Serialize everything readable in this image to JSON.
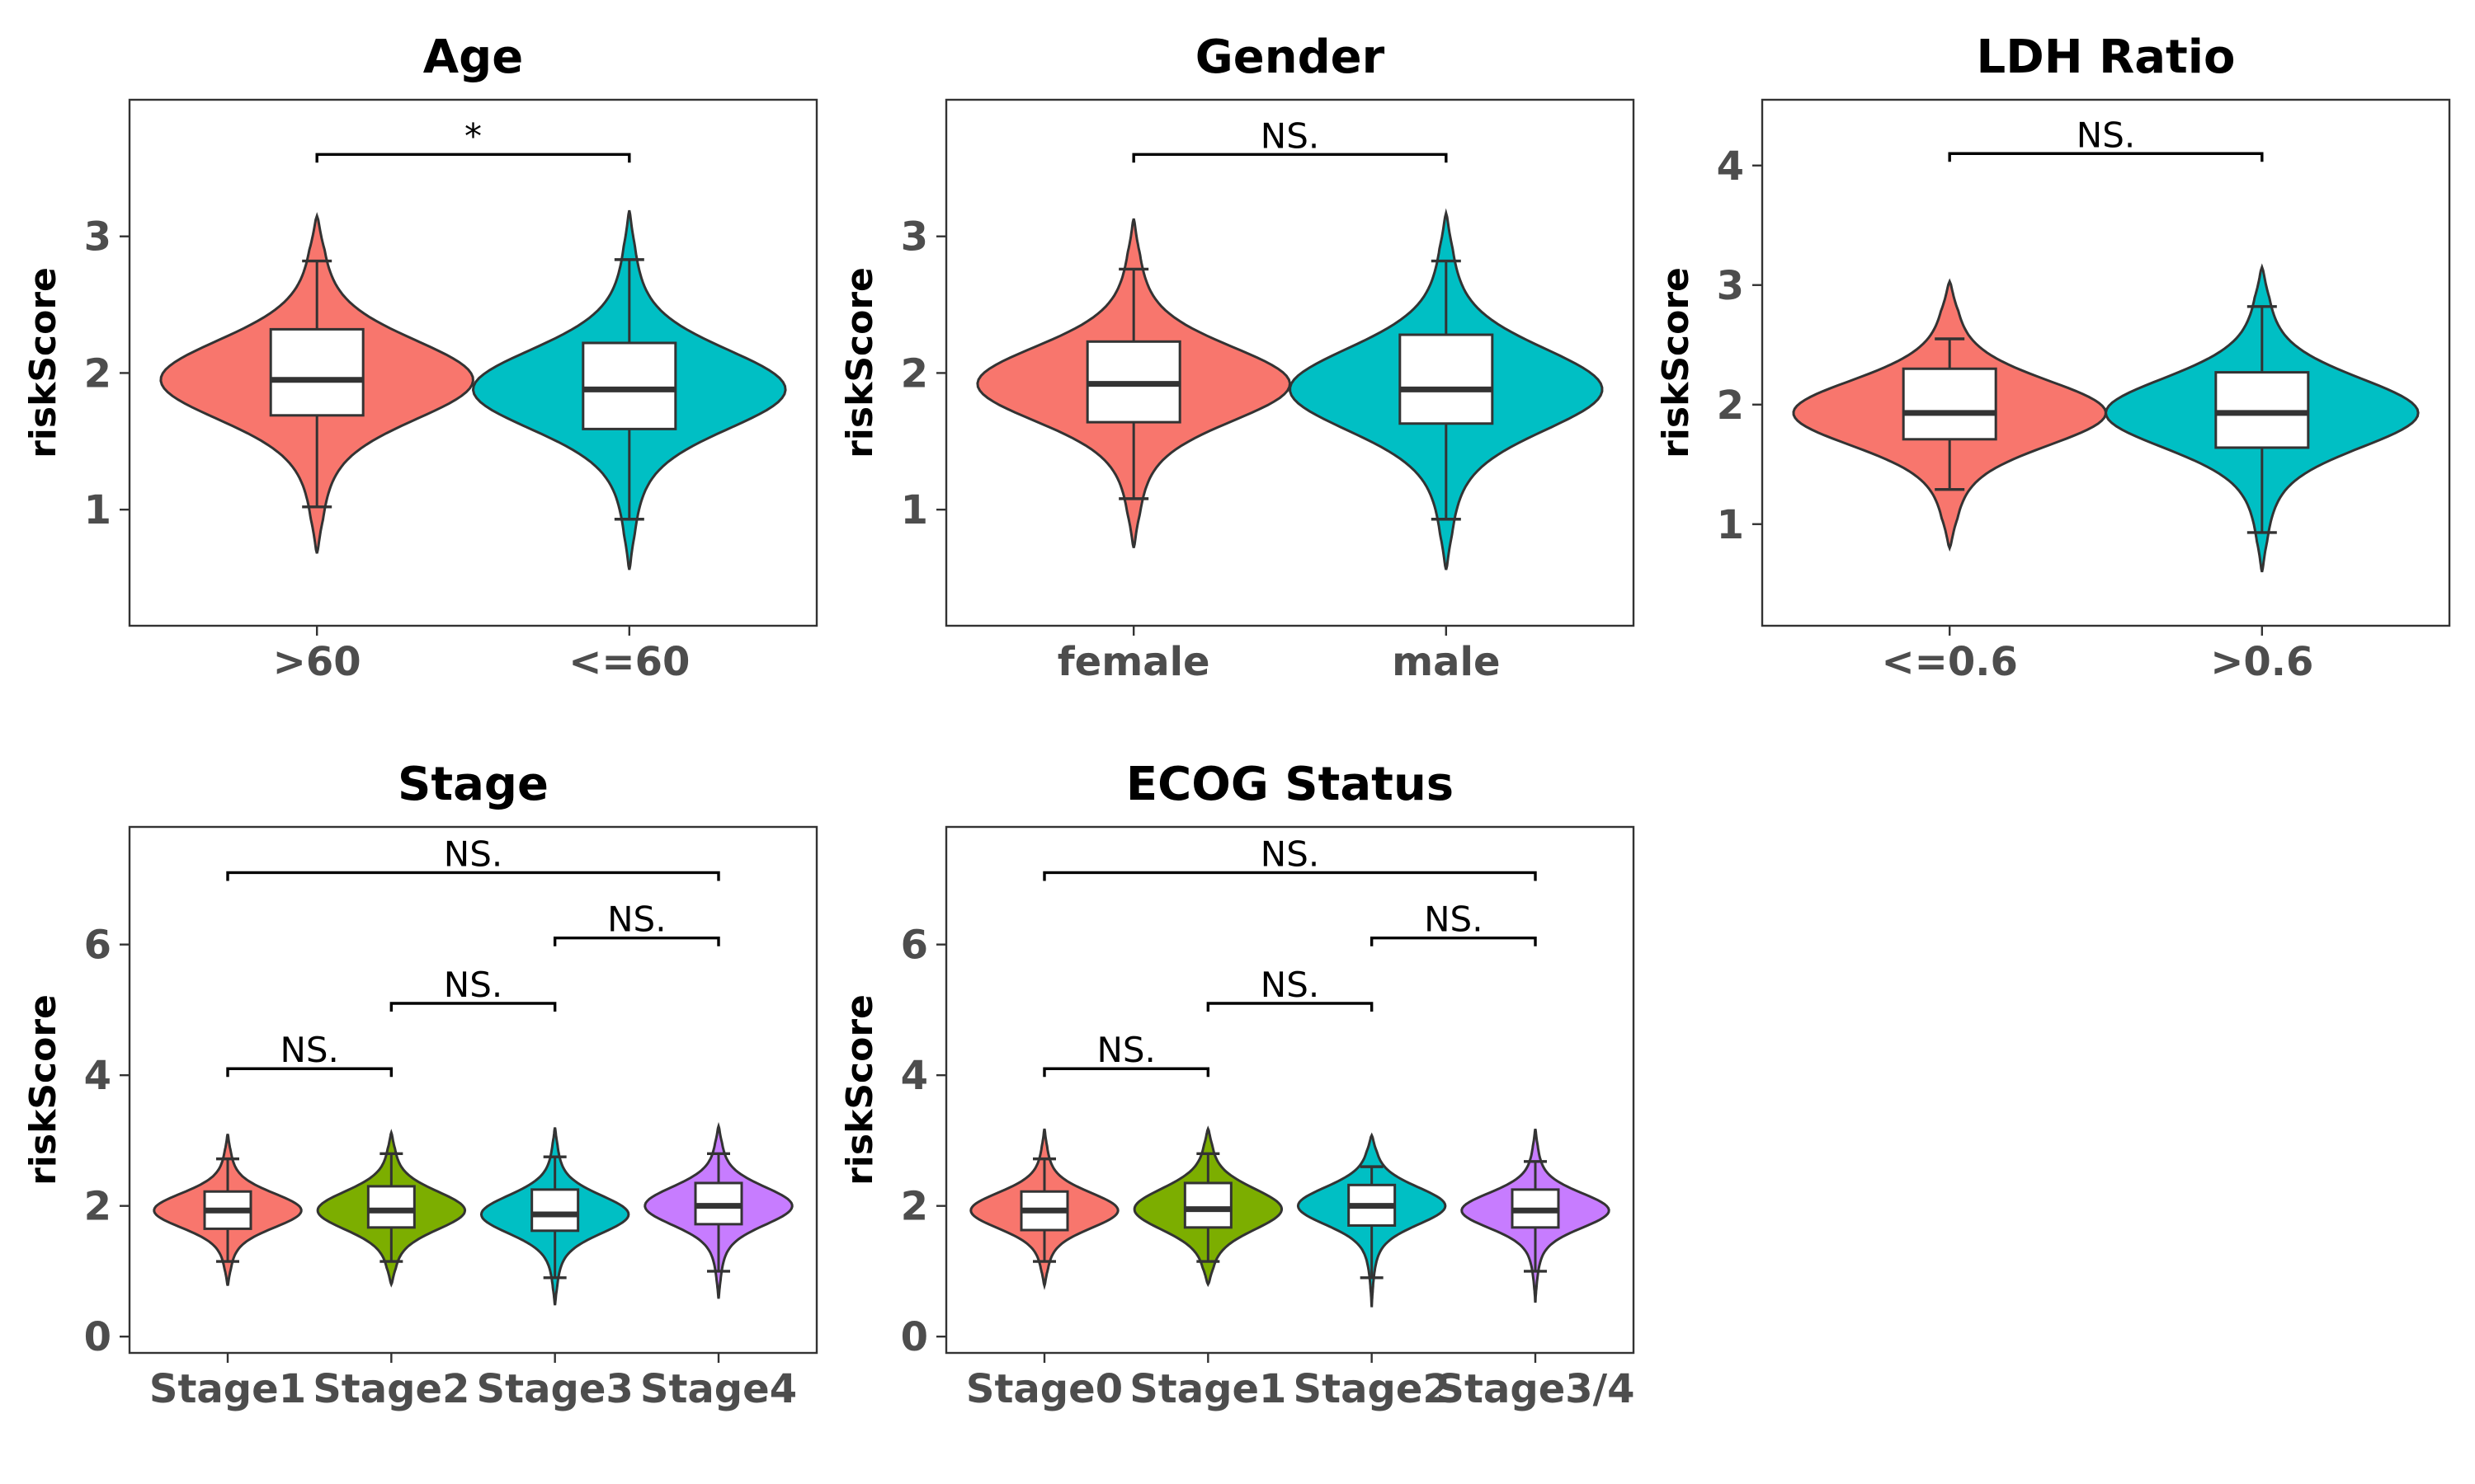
{
  "chart_data": [
    {
      "type": "violin",
      "title": "Age",
      "ylabel": "riskScore",
      "xlabel": "",
      "ylim": [
        0.15,
        4.0
      ],
      "yticks": [
        1,
        2,
        3
      ],
      "grid": false,
      "legend": "none",
      "categories": [
        ">60",
        "<=60"
      ],
      "series": [
        {
          "category": ">60",
          "color": "#F8766D",
          "violin_range": [
            0.68,
            3.15
          ],
          "whiskers": [
            1.02,
            2.82
          ],
          "quartiles": [
            1.69,
            2.32
          ],
          "median": 1.95
        },
        {
          "category": "<=60",
          "color": "#00BFC4",
          "violin_range": [
            0.56,
            3.19
          ],
          "whiskers": [
            0.93,
            2.83
          ],
          "quartiles": [
            1.59,
            2.22
          ],
          "median": 1.88
        }
      ],
      "comparisons": [
        {
          "from": ">60",
          "to": "<=60",
          "y": 3.6,
          "label": "*"
        }
      ]
    },
    {
      "type": "violin",
      "title": "Gender",
      "ylabel": "riskScore",
      "xlabel": "",
      "ylim": [
        0.15,
        4.0
      ],
      "yticks": [
        1,
        2,
        3
      ],
      "grid": false,
      "legend": "none",
      "categories": [
        "female",
        "male"
      ],
      "series": [
        {
          "category": "female",
          "color": "#F8766D",
          "violin_range": [
            0.72,
            3.13
          ],
          "whiskers": [
            1.08,
            2.76
          ],
          "quartiles": [
            1.64,
            2.23
          ],
          "median": 1.92
        },
        {
          "category": "male",
          "color": "#00BFC4",
          "violin_range": [
            0.56,
            3.17
          ],
          "whiskers": [
            0.93,
            2.82
          ],
          "quartiles": [
            1.63,
            2.28
          ],
          "median": 1.88
        }
      ],
      "comparisons": [
        {
          "from": "female",
          "to": "male",
          "y": 3.6,
          "label": "NS."
        }
      ]
    },
    {
      "type": "violin",
      "title": "LDH Ratio",
      "ylabel": "riskScore",
      "xlabel": "",
      "ylim": [
        0.15,
        4.55
      ],
      "yticks": [
        1,
        2,
        3,
        4
      ],
      "grid": false,
      "legend": "none",
      "categories": [
        "<=0.6",
        ">0.6"
      ],
      "series": [
        {
          "category": "<=0.6",
          "color": "#F8766D",
          "violin_range": [
            0.8,
            3.03
          ],
          "whiskers": [
            1.29,
            2.55
          ],
          "quartiles": [
            1.71,
            2.3
          ],
          "median": 1.93
        },
        {
          "category": ">0.6",
          "color": "#00BFC4",
          "violin_range": [
            0.6,
            3.15
          ],
          "whiskers": [
            0.93,
            2.82
          ],
          "quartiles": [
            1.64,
            2.27
          ],
          "median": 1.93
        }
      ],
      "comparisons": [
        {
          "from": "<=0.6",
          "to": ">0.6",
          "y": 4.1,
          "label": "NS."
        }
      ]
    },
    {
      "type": "violin",
      "title": "Stage",
      "ylabel": "riskScore",
      "xlabel": "",
      "ylim": [
        -0.25,
        7.8
      ],
      "yticks": [
        0,
        2,
        4,
        6
      ],
      "grid": false,
      "legend": "none",
      "categories": [
        "Stage1",
        "Stage2",
        "Stage3",
        "Stage4"
      ],
      "series": [
        {
          "category": "Stage1",
          "color": "#F8766D",
          "violin_range": [
            0.78,
            3.1
          ],
          "whiskers": [
            1.15,
            2.72
          ],
          "quartiles": [
            1.65,
            2.22
          ],
          "median": 1.93
        },
        {
          "category": "Stage2",
          "color": "#7CAE00",
          "violin_range": [
            0.8,
            3.12
          ],
          "whiskers": [
            1.15,
            2.8
          ],
          "quartiles": [
            1.67,
            2.3
          ],
          "median": 1.93
        },
        {
          "category": "Stage3",
          "color": "#00BFC4",
          "violin_range": [
            0.48,
            3.2
          ],
          "whiskers": [
            0.9,
            2.75
          ],
          "quartiles": [
            1.62,
            2.25
          ],
          "median": 1.87
        },
        {
          "category": "Stage4",
          "color": "#C77CFF",
          "violin_range": [
            0.58,
            3.22
          ],
          "whiskers": [
            1.0,
            2.8
          ],
          "quartiles": [
            1.72,
            2.35
          ],
          "median": 2.0
        }
      ],
      "comparisons": [
        {
          "from": "Stage1",
          "to": "Stage2",
          "y": 4.1,
          "label": "NS."
        },
        {
          "from": "Stage2",
          "to": "Stage3",
          "y": 5.1,
          "label": "NS."
        },
        {
          "from": "Stage3",
          "to": "Stage4",
          "y": 6.1,
          "label": "NS."
        },
        {
          "from": "Stage1",
          "to": "Stage4",
          "y": 7.1,
          "label": "NS."
        }
      ]
    },
    {
      "type": "violin",
      "title": "ECOG Status",
      "ylabel": "riskScore",
      "xlabel": "",
      "ylim": [
        -0.25,
        7.8
      ],
      "yticks": [
        0,
        2,
        4,
        6
      ],
      "grid": false,
      "legend": "none",
      "categories": [
        "Stage0",
        "Stage1",
        "Stage2",
        "Stage3/4"
      ],
      "series": [
        {
          "category": "Stage0",
          "color": "#F8766D",
          "violin_range": [
            0.78,
            3.18
          ],
          "whiskers": [
            1.15,
            2.72
          ],
          "quartiles": [
            1.63,
            2.22
          ],
          "median": 1.93
        },
        {
          "category": "Stage1",
          "color": "#7CAE00",
          "violin_range": [
            0.8,
            3.18
          ],
          "whiskers": [
            1.15,
            2.8
          ],
          "quartiles": [
            1.67,
            2.35
          ],
          "median": 1.95
        },
        {
          "category": "Stage2",
          "color": "#00BFC4",
          "violin_range": [
            0.45,
            3.08
          ],
          "whiskers": [
            0.9,
            2.6
          ],
          "quartiles": [
            1.7,
            2.32
          ],
          "median": 2.0
        },
        {
          "category": "Stage3/4",
          "color": "#C77CFF",
          "violin_range": [
            0.52,
            3.18
          ],
          "whiskers": [
            1.0,
            2.68
          ],
          "quartiles": [
            1.67,
            2.25
          ],
          "median": 1.93
        }
      ],
      "comparisons": [
        {
          "from": "Stage0",
          "to": "Stage1",
          "y": 4.1,
          "label": "NS."
        },
        {
          "from": "Stage1",
          "to": "Stage2",
          "y": 5.1,
          "label": "NS."
        },
        {
          "from": "Stage2",
          "to": "Stage3/4",
          "y": 6.1,
          "label": "NS."
        },
        {
          "from": "Stage0",
          "to": "Stage3/4",
          "y": 7.1,
          "label": "NS."
        }
      ]
    }
  ]
}
